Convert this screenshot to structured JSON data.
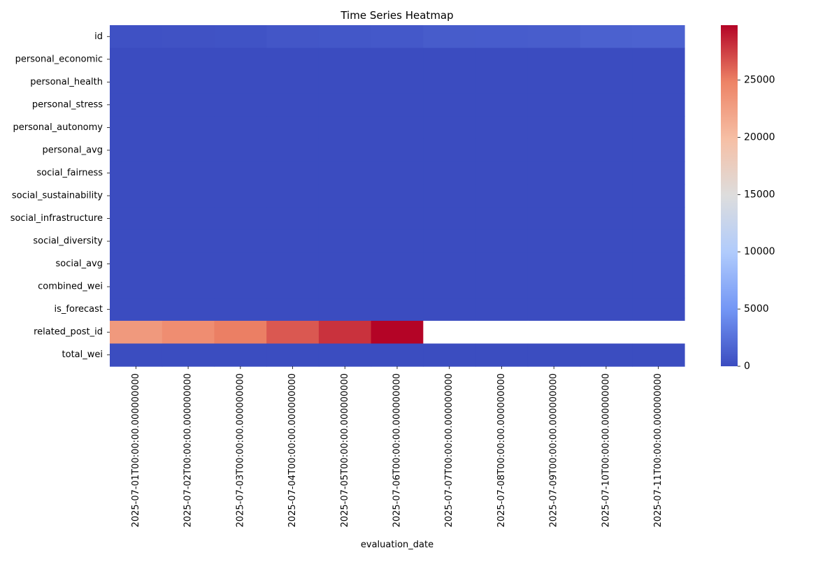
{
  "chart_data": {
    "type": "heatmap",
    "title": "Time Series Heatmap",
    "xlabel": "evaluation_date",
    "ylabel": "",
    "colormap": "coolwarm",
    "colormap_stops": [
      "#3b4cc0",
      "#7396f5",
      "#b0cbfc",
      "#dddddd",
      "#f6bfa5",
      "#ed8366",
      "#b40426"
    ],
    "missing_color": "#ffffff",
    "vmin": 0,
    "vmax": 29800,
    "colorbar_ticks": [
      0,
      5000,
      10000,
      15000,
      20000,
      25000
    ],
    "colorbar_tick_labels": [
      "0",
      "5000",
      "10000",
      "15000",
      "20000",
      "25000"
    ],
    "rows": [
      "id",
      "personal_economic",
      "personal_health",
      "personal_stress",
      "personal_autonomy",
      "personal_avg",
      "social_fairness",
      "social_sustainability",
      "social_infrastructure",
      "social_diversity",
      "social_avg",
      "combined_wei",
      "is_forecast",
      "related_post_id",
      "total_wei"
    ],
    "columns": [
      "2025-07-01T00:00:00.000000000",
      "2025-07-02T00:00:00.000000000",
      "2025-07-03T00:00:00.000000000",
      "2025-07-04T00:00:00.000000000",
      "2025-07-05T00:00:00.000000000",
      "2025-07-06T00:00:00.000000000",
      "2025-07-07T00:00:00.000000000",
      "2025-07-08T00:00:00.000000000",
      "2025-07-09T00:00:00.000000000",
      "2025-07-10T00:00:00.000000000",
      "2025-07-11T00:00:00.000000000"
    ],
    "values": [
      [
        350,
        400,
        450,
        700,
        750,
        800,
        1050,
        1100,
        1150,
        1400,
        1500
      ],
      [
        5,
        5,
        5,
        5,
        5,
        5,
        5,
        5,
        5,
        5,
        5
      ],
      [
        5,
        5,
        5,
        5,
        5,
        5,
        5,
        5,
        5,
        5,
        5
      ],
      [
        5,
        5,
        5,
        5,
        5,
        5,
        5,
        5,
        5,
        5,
        5
      ],
      [
        5,
        5,
        5,
        5,
        5,
        5,
        5,
        5,
        5,
        5,
        5
      ],
      [
        5,
        5,
        5,
        5,
        5,
        5,
        5,
        5,
        5,
        5,
        5
      ],
      [
        5,
        5,
        5,
        5,
        5,
        5,
        5,
        5,
        5,
        5,
        5
      ],
      [
        5,
        5,
        5,
        5,
        5,
        5,
        5,
        5,
        5,
        5,
        5
      ],
      [
        5,
        5,
        5,
        5,
        5,
        5,
        5,
        5,
        5,
        5,
        5
      ],
      [
        5,
        5,
        5,
        5,
        5,
        5,
        5,
        5,
        5,
        5,
        5
      ],
      [
        5,
        5,
        5,
        5,
        5,
        5,
        5,
        5,
        5,
        5,
        5
      ],
      [
        5,
        5,
        5,
        5,
        5,
        5,
        5,
        5,
        5,
        5,
        5
      ],
      [
        0,
        0,
        0,
        0,
        0,
        0,
        0,
        0,
        0,
        0,
        0
      ],
      [
        23000,
        24000,
        25000,
        26500,
        28000,
        29800,
        null,
        null,
        null,
        null,
        null
      ],
      [
        40,
        40,
        40,
        40,
        40,
        40,
        40,
        40,
        40,
        40,
        40
      ]
    ]
  }
}
